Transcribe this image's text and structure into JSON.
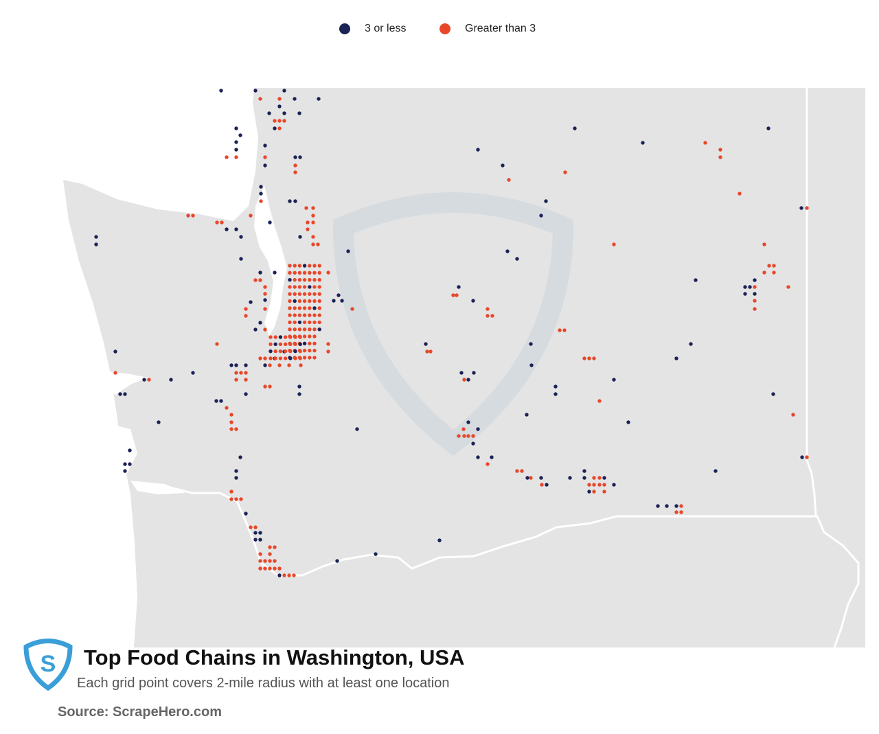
{
  "legend": {
    "items": [
      {
        "name": "3 or less",
        "color": "#1b2255"
      },
      {
        "name": "Greater than 3",
        "color": "#e8472a"
      }
    ]
  },
  "title": "Top Food Chains in Washington, USA",
  "subtitle": "Each grid point covers 2-mile radius with at least one location",
  "source": "Source: ScrapeHero.com"
}
